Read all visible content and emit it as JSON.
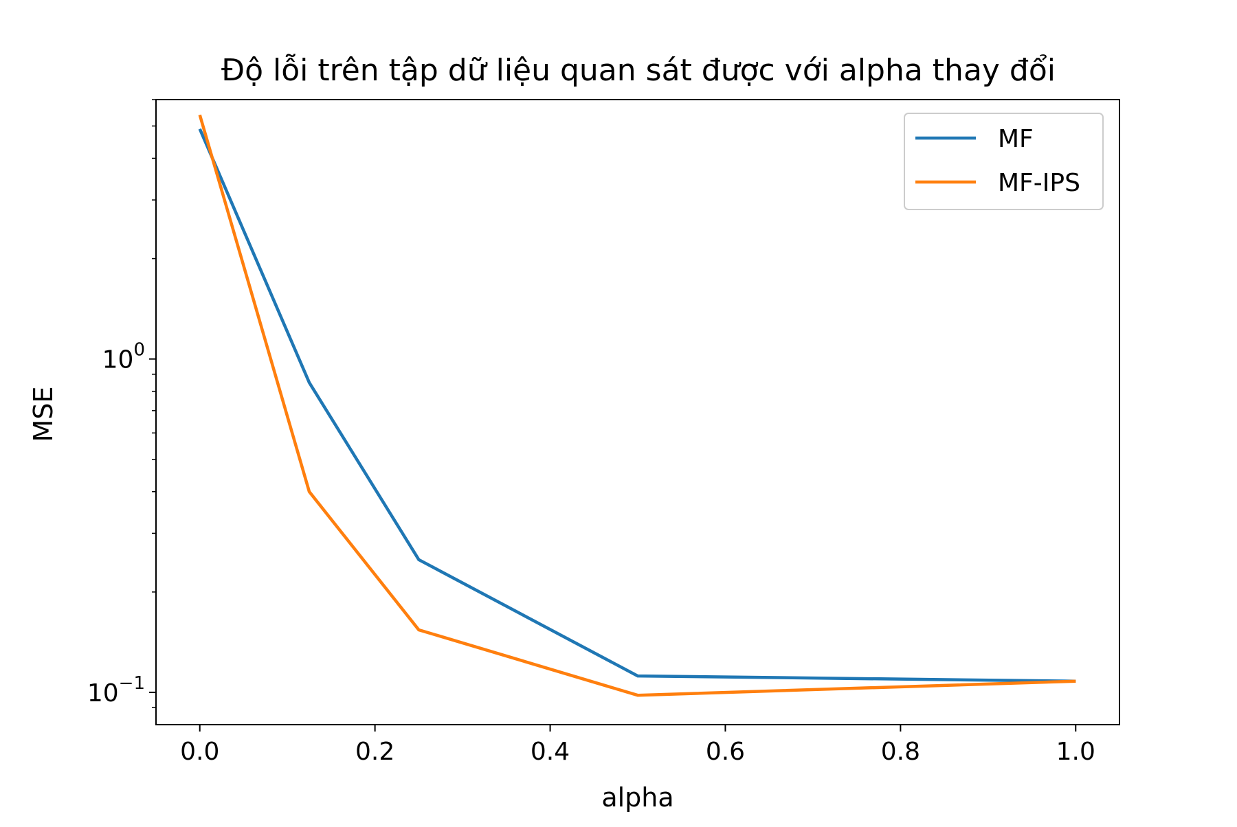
{
  "chart_data": {
    "type": "line",
    "title": "Độ lỗi trên tập dữ liệu quan sát được với alpha thay đổi",
    "xlabel": "alpha",
    "ylabel": "MSE",
    "x": [
      0.0,
      0.125,
      0.25,
      0.5,
      1.0
    ],
    "series": [
      {
        "name": "MF",
        "color": "#1f77b4",
        "values": [
          4.9,
          0.85,
          0.25,
          0.112,
          0.108
        ]
      },
      {
        "name": "MF-IPS",
        "color": "#ff7f0e",
        "values": [
          5.4,
          0.4,
          0.154,
          0.098,
          0.108
        ]
      }
    ],
    "xlim": [
      -0.05,
      1.05
    ],
    "ylim": [
      0.08,
      6.0
    ],
    "yscale": "log",
    "x_ticks": [
      {
        "value": 0.0,
        "label": "0.0"
      },
      {
        "value": 0.2,
        "label": "0.2"
      },
      {
        "value": 0.4,
        "label": "0.4"
      },
      {
        "value": 0.6,
        "label": "0.6"
      },
      {
        "value": 0.8,
        "label": "0.8"
      },
      {
        "value": 1.0,
        "label": "1.0"
      }
    ],
    "y_major_ticks": [
      {
        "value": 0.1,
        "base": "10",
        "exponent": "−1"
      },
      {
        "value": 1.0,
        "base": "10",
        "exponent": "0"
      }
    ],
    "y_minor_ticks": [
      0.09,
      0.2,
      0.3,
      0.4,
      0.5,
      0.6,
      0.7,
      0.8,
      0.9,
      2,
      3,
      4,
      5,
      6
    ],
    "grid": false,
    "legend": "top-right"
  }
}
